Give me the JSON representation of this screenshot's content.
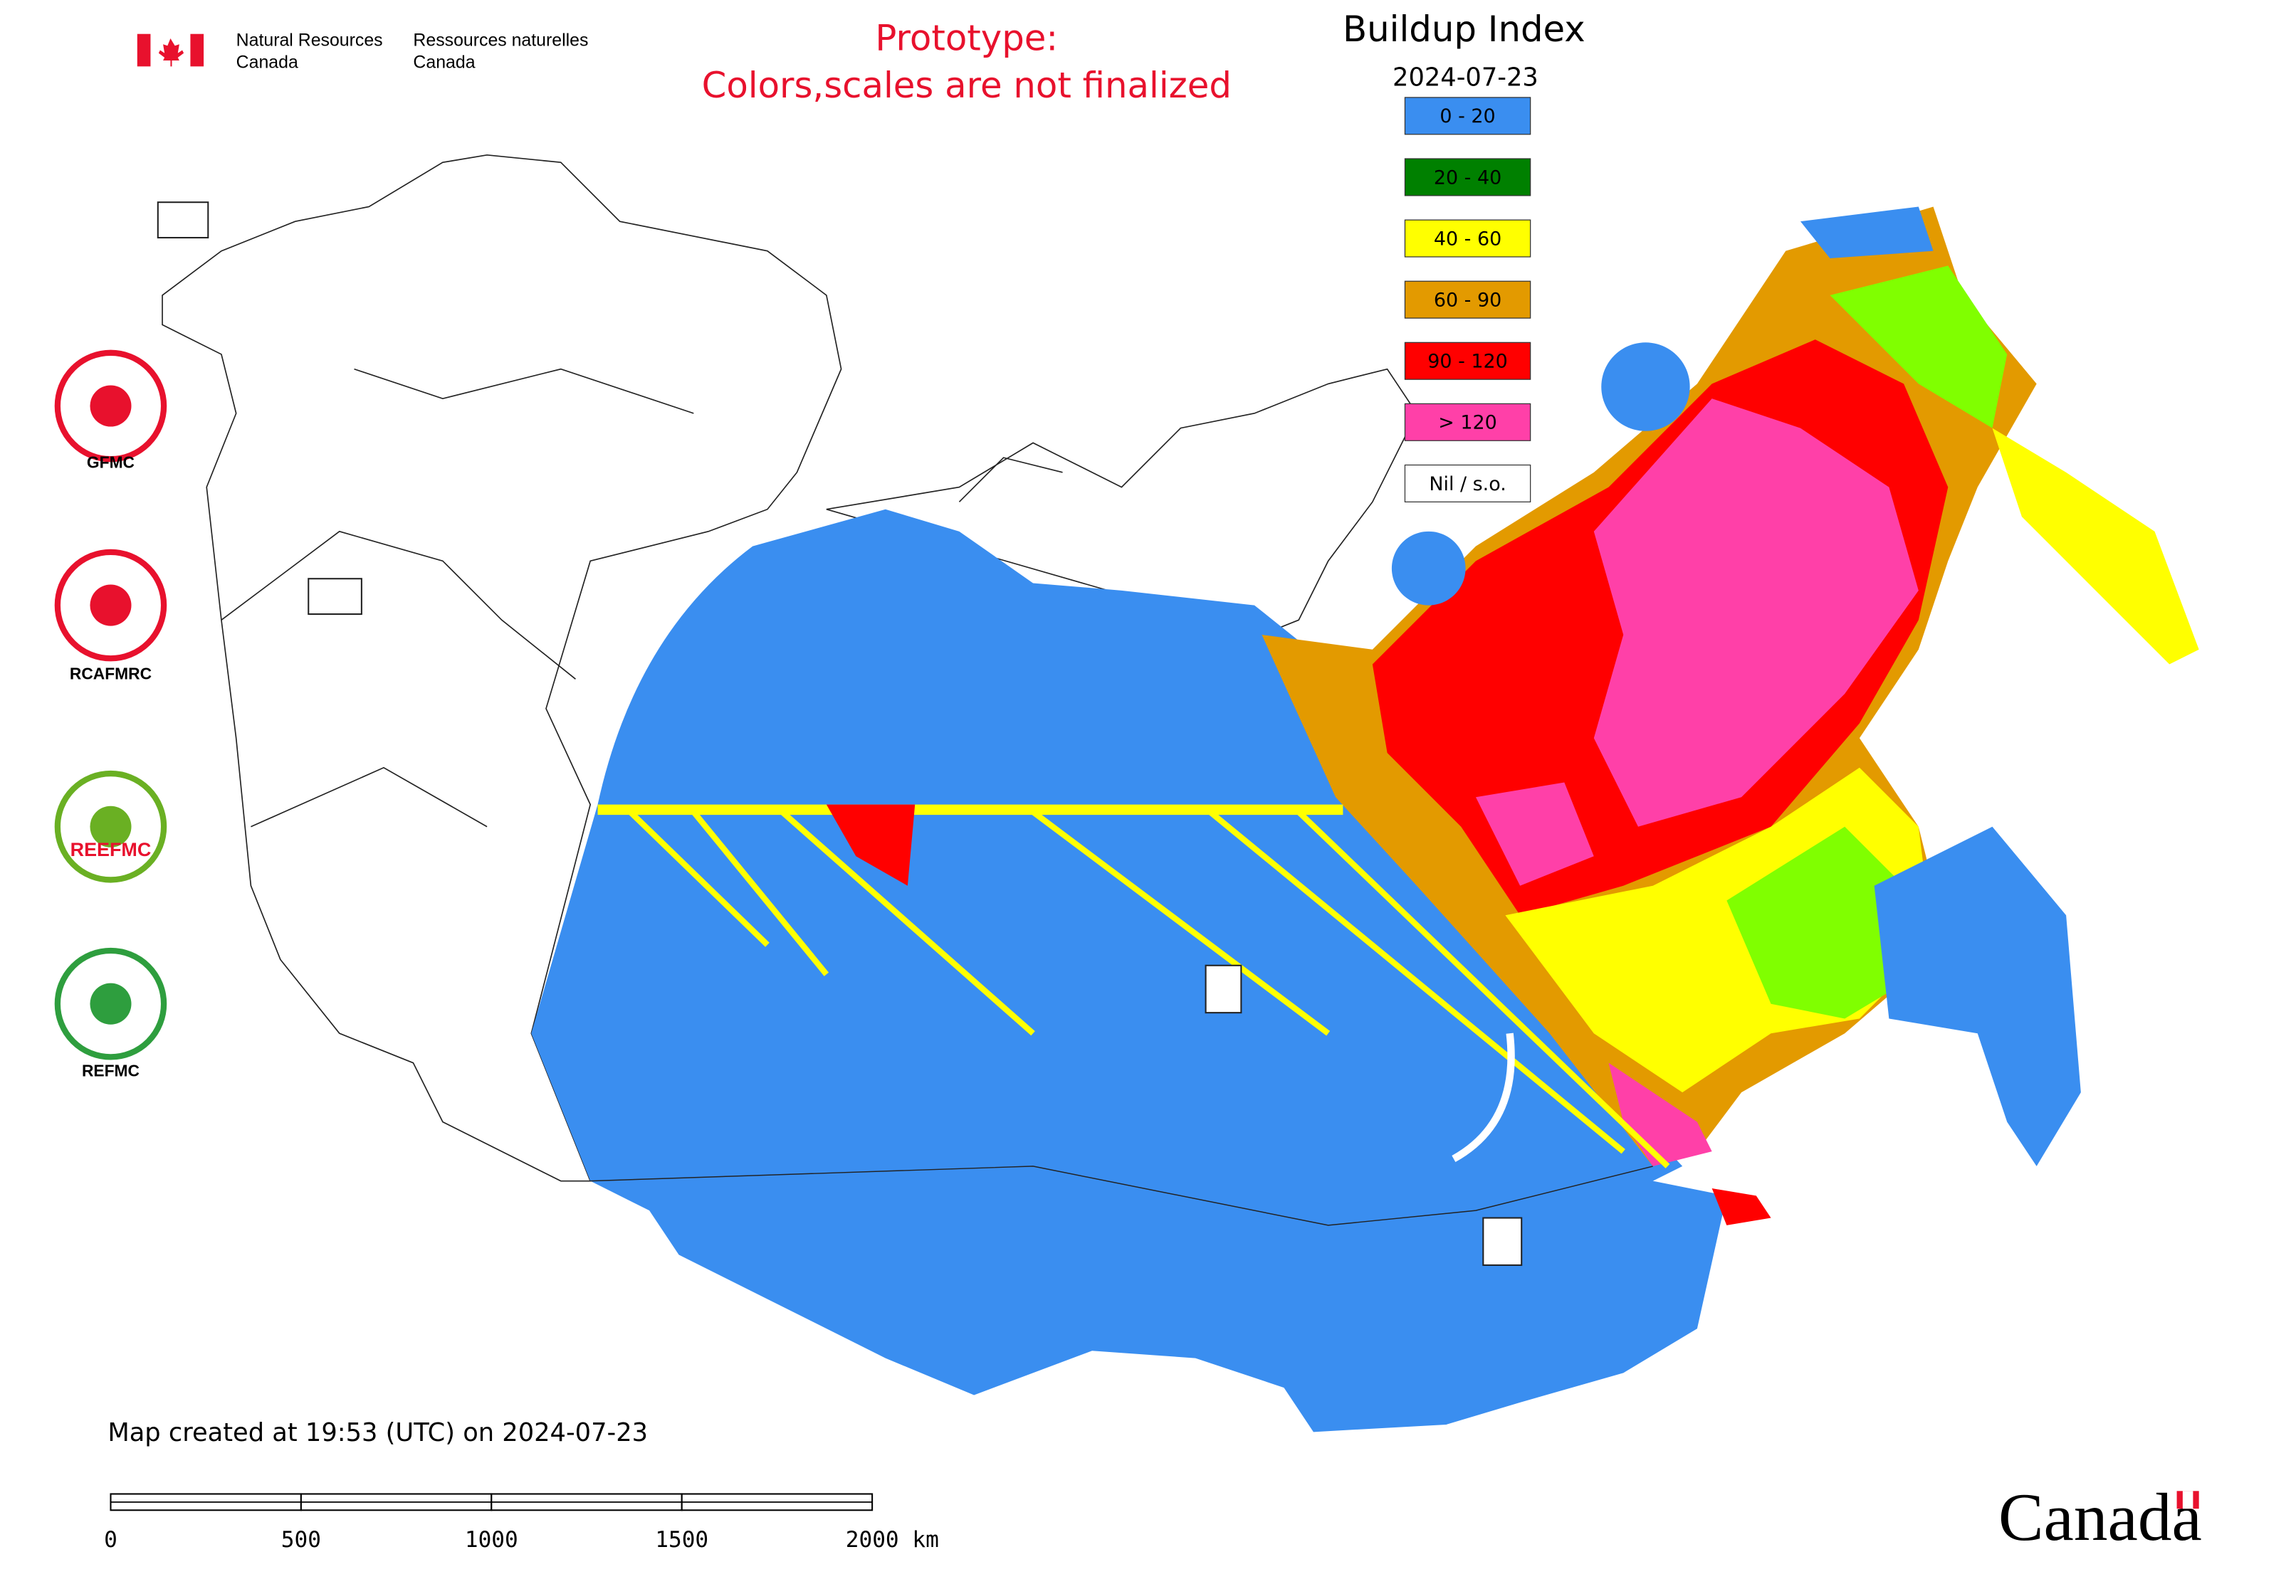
{
  "header": {
    "department_en": [
      "Natural Resources",
      "Canada"
    ],
    "department_fr": [
      "Ressources naturelles",
      "Canada"
    ],
    "notice": [
      "Prototype:",
      "Colors,scales are not finalized"
    ]
  },
  "map": {
    "title": "Buildup Index",
    "date": "2024-07-23",
    "legend": [
      {
        "label": "0 - 20",
        "color": "#3a8ef0"
      },
      {
        "label": "20 - 40",
        "color": "#008000"
      },
      {
        "label": "40 - 60",
        "color": "#ffff00"
      },
      {
        "label": "60 - 90",
        "color": "#e39a00"
      },
      {
        "label": "90 - 120",
        "color": "#ff0000"
      },
      {
        "label": "> 120",
        "color": "#ff40a8"
      },
      {
        "label": "Nil / s.o.",
        "color": "#ffffff"
      }
    ],
    "created": "Map created at 19:53 (UTC) on 2024-07-23",
    "scale_bar": [
      "0",
      "500",
      "1000",
      "1500",
      "2000 km"
    ],
    "logos": [
      "GFMC",
      "RCAFMRC",
      "REEFMC",
      "REFMC"
    ],
    "wordmark": "Canada"
  }
}
